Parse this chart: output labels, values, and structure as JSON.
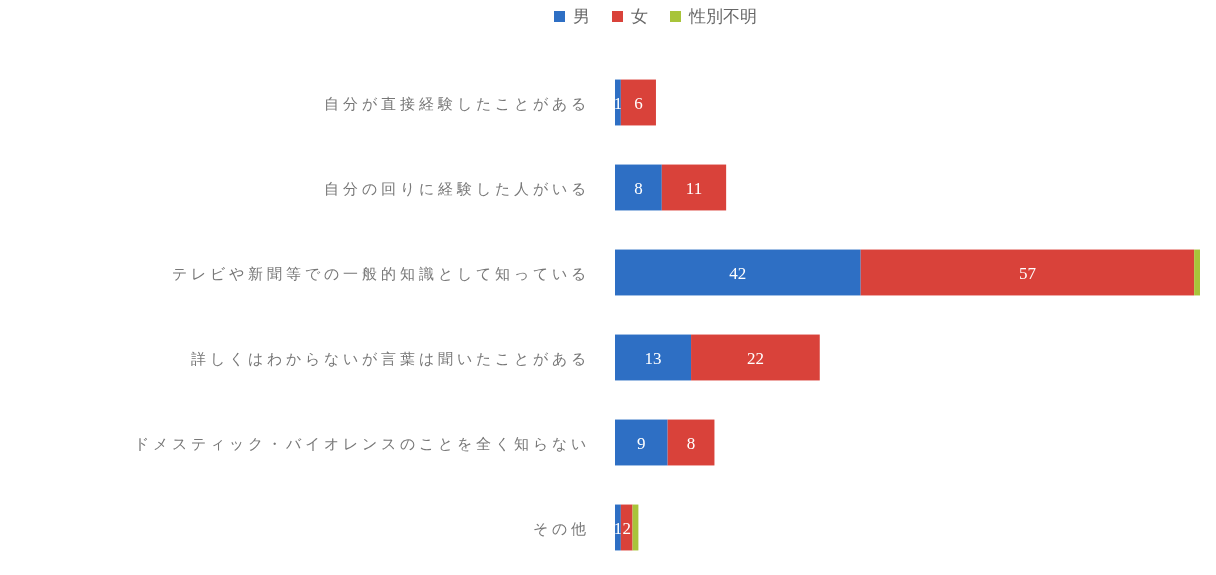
{
  "chart_data": {
    "type": "bar",
    "orientation": "horizontal",
    "stacked": true,
    "legend": "top",
    "categories": [
      "自分が直接経験したことがある",
      "自分の回りに経験した人がいる",
      "テレビや新聞等での一般的知識として知っている",
      "詳しくはわからないが言葉は聞いたことがある",
      "ドメスティック・バイオレンスのことを全く知らない",
      "その他"
    ],
    "series": [
      {
        "name": "男",
        "color": "#2e6fc4",
        "values": [
          1,
          8,
          42,
          13,
          9,
          1
        ],
        "value_labels": [
          "1",
          "8",
          "42",
          "13",
          "9",
          "1"
        ]
      },
      {
        "name": "女",
        "color": "#d9423a",
        "values": [
          6,
          11,
          57,
          22,
          8,
          2
        ],
        "value_labels": [
          "6",
          "11",
          "57",
          "22",
          "8",
          "2"
        ]
      },
      {
        "name": "性別不明",
        "color": "#a8c43a",
        "values": [
          0,
          0,
          1,
          0,
          0,
          1
        ],
        "value_labels": [
          null,
          null,
          null,
          null,
          null,
          null
        ]
      }
    ]
  }
}
